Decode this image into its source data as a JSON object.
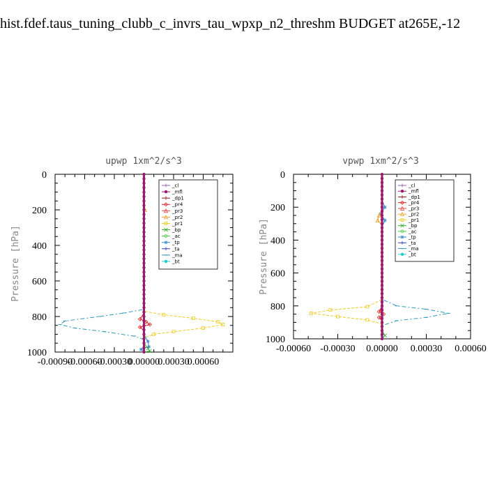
{
  "figure_title": "hist.fdef.taus_tuning_clubb_c_invrs_tau_wpxp_n2_threshm  BUDGET at265E,-12",
  "ylabel": "Pressure [hPa]",
  "legend": [
    {
      "name": "_cl",
      "color": "#8c5fb0",
      "marker": "+"
    },
    {
      "name": "_mfl",
      "color": "#9a1a6b",
      "marker": "dot"
    },
    {
      "name": "_dp1",
      "color": "#8b1a1a",
      "marker": "+"
    },
    {
      "name": "_pr4",
      "color": "#dd2222",
      "marker": "diamond"
    },
    {
      "name": "_pr3",
      "color": "#ee4444",
      "marker": "triangle"
    },
    {
      "name": "_pr2",
      "color": "#f0a030",
      "marker": "triangle"
    },
    {
      "name": "_pr1",
      "color": "#eecc22",
      "marker": "square"
    },
    {
      "name": "_bp",
      "color": "#33aa33",
      "marker": "x"
    },
    {
      "name": "_ac",
      "color": "#44cc44",
      "marker": "o"
    },
    {
      "name": "_tp",
      "color": "#3388cc",
      "marker": "*"
    },
    {
      "name": "_ta",
      "color": "#3344bb",
      "marker": "+"
    },
    {
      "name": "_ma",
      "color": "#3399bb",
      "marker": "dash"
    },
    {
      "name": "_bt",
      "color": "#22cccc",
      "marker": "dot"
    }
  ],
  "chart_data": [
    {
      "type": "line",
      "title": "upwp  1xm^2/s^3",
      "xlabel": "",
      "ylabel": "Pressure [hPa]",
      "xlim": [
        -0.0009,
        0.0009
      ],
      "ylim": [
        1000,
        0
      ],
      "xticks": [
        "-0.00090",
        "-0.00060",
        "-0.00030",
        "0.00000",
        "0.00030",
        "0.00060"
      ],
      "xtick_values": [
        -0.0009,
        -0.0006,
        -0.0003,
        0,
        0.0003,
        0.0006
      ],
      "yticks": [
        "0",
        "200",
        "400",
        "600",
        "800",
        "1000"
      ],
      "ytick_values": [
        0,
        200,
        400,
        600,
        800,
        1000
      ],
      "legend_position": "top-right",
      "series": [
        {
          "name": "_ma",
          "points": [
            [
              0,
              0
            ],
            [
              0,
              700
            ],
            [
              0,
              760
            ],
            [
              -0.0002,
              780
            ],
            [
              -0.00045,
              800
            ],
            [
              -0.0008,
              825
            ],
            [
              -0.00085,
              845
            ],
            [
              -0.0007,
              865
            ],
            [
              -0.0004,
              885
            ],
            [
              -0.0001,
              910
            ],
            [
              0,
              930
            ],
            [
              0,
              1000
            ]
          ]
        },
        {
          "name": "_pr1",
          "points": [
            [
              0,
              0
            ],
            [
              0,
              700
            ],
            [
              0,
              770
            ],
            [
              0.0002,
              790
            ],
            [
              0.0005,
              810
            ],
            [
              0.00075,
              830
            ],
            [
              0.0008,
              845
            ],
            [
              0.0006,
              865
            ],
            [
              0.0003,
              885
            ],
            [
              0.0001,
              900
            ],
            [
              0,
              920
            ],
            [
              0,
              1000
            ]
          ]
        },
        {
          "name": "_pr2",
          "points": [
            [
              0,
              0
            ],
            [
              0,
              160
            ],
            [
              1e-05,
              200
            ],
            [
              0,
              260
            ],
            [
              0,
              1000
            ]
          ]
        },
        {
          "name": "_tp",
          "points": [
            [
              0,
              0
            ],
            [
              0,
              900
            ],
            [
              4e-05,
              940
            ],
            [
              5e-05,
              970
            ],
            [
              -3e-05,
              985
            ],
            [
              0,
              1000
            ]
          ]
        },
        {
          "name": "_bp",
          "points": [
            [
              0,
              0
            ],
            [
              0,
              950
            ],
            [
              4e-05,
              980
            ],
            [
              6e-05,
              995
            ],
            [
              0,
              1000
            ]
          ]
        },
        {
          "name": "_pr4",
          "points": [
            [
              0,
              0
            ],
            [
              0,
              780
            ],
            [
              -4e-05,
              815
            ],
            [
              2e-05,
              830
            ],
            [
              6e-05,
              845
            ],
            [
              -4e-05,
              860
            ],
            [
              0,
              880
            ],
            [
              0,
              1000
            ]
          ]
        },
        {
          "name": "_mfl",
          "points": [
            [
              0,
              0
            ],
            [
              0,
              1000
            ]
          ]
        }
      ]
    },
    {
      "type": "line",
      "title": "vpwp  1xm^2/s^3",
      "xlabel": "",
      "ylabel": "Pressure [hPa]",
      "xlim": [
        -0.0006,
        0.0006
      ],
      "ylim": [
        1000,
        0
      ],
      "xticks": [
        "-0.00060",
        "-0.00030",
        "0.00000",
        "0.00030",
        "0.00060"
      ],
      "xtick_values": [
        -0.0006,
        -0.0003,
        0,
        0.0003,
        0.0006
      ],
      "yticks": [
        "0",
        "200",
        "400",
        "600",
        "800",
        "1000"
      ],
      "ytick_values": [
        0,
        200,
        400,
        600,
        800,
        1000
      ],
      "legend_position": "top-right",
      "series": [
        {
          "name": "_ma",
          "points": [
            [
              0,
              0
            ],
            [
              0,
              760
            ],
            [
              0.0001,
              800
            ],
            [
              0.0003,
              820
            ],
            [
              0.00045,
              845
            ],
            [
              0.0003,
              870
            ],
            [
              0.0001,
              890
            ],
            [
              0,
              920
            ],
            [
              0,
              1000
            ]
          ]
        },
        {
          "name": "_pr1",
          "points": [
            [
              0,
              0
            ],
            [
              0,
              760
            ],
            [
              -0.0001,
              805
            ],
            [
              -0.00035,
              825
            ],
            [
              -0.00048,
              845
            ],
            [
              -0.0003,
              865
            ],
            [
              -0.0001,
              885
            ],
            [
              0,
              910
            ],
            [
              0,
              1000
            ]
          ]
        },
        {
          "name": "_tp",
          "points": [
            [
              0,
              0
            ],
            [
              0,
              160
            ],
            [
              2e-05,
              200
            ],
            [
              -1e-05,
              240
            ],
            [
              2e-05,
              280
            ],
            [
              0,
              320
            ],
            [
              0,
              1000
            ]
          ]
        },
        {
          "name": "_pr2",
          "points": [
            [
              0,
              0
            ],
            [
              0,
              220
            ],
            [
              -2e-05,
              250
            ],
            [
              -3e-05,
              280
            ],
            [
              0,
              310
            ],
            [
              0,
              1000
            ]
          ]
        },
        {
          "name": "_pr4",
          "points": [
            [
              0,
              0
            ],
            [
              0,
              800
            ],
            [
              -2e-05,
              835
            ],
            [
              1e-05,
              850
            ],
            [
              -2e-05,
              870
            ],
            [
              0,
              890
            ],
            [
              0,
              1000
            ]
          ]
        },
        {
          "name": "_bp",
          "points": [
            [
              0,
              0
            ],
            [
              0,
              950
            ],
            [
              2e-05,
              980
            ],
            [
              0,
              1000
            ]
          ]
        },
        {
          "name": "_mfl",
          "points": [
            [
              0,
              0
            ],
            [
              0,
              1000
            ]
          ]
        }
      ]
    }
  ]
}
